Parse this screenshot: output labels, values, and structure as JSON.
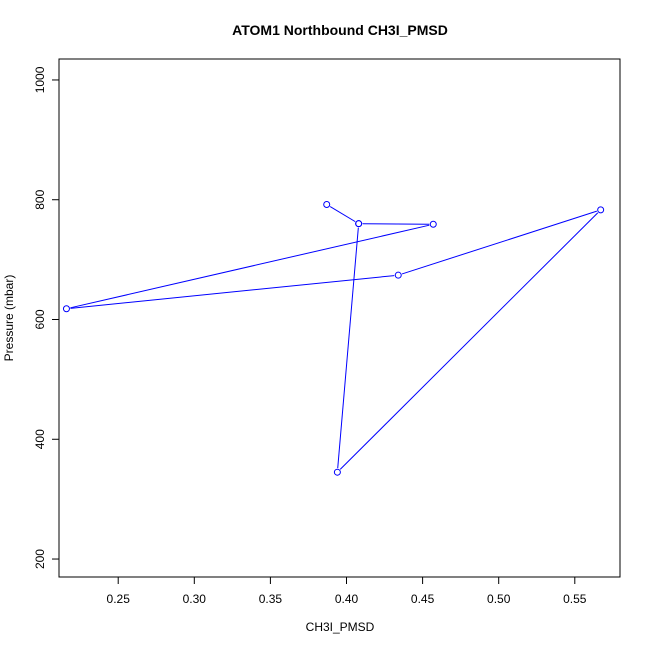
{
  "chart_data": {
    "type": "line",
    "title": "ATOM1 Northbound CH3I_PMSD",
    "xlabel": "CH3I_PMSD",
    "ylabel": "Pressure (mbar)",
    "xlim": [
      0.2111,
      0.5797
    ],
    "ylim": [
      1035,
      170
    ],
    "y_reversed": true,
    "x_ticks": [
      0.25,
      0.3,
      0.35,
      0.4,
      0.45,
      0.5,
      0.55
    ],
    "x_tick_labels": [
      "0.25",
      "0.30",
      "0.35",
      "0.40",
      "0.45",
      "0.50",
      "0.55"
    ],
    "y_ticks": [
      200,
      400,
      600,
      800,
      1000
    ],
    "y_tick_labels": [
      "200",
      "400",
      "600",
      "800",
      "1000"
    ],
    "grid": false,
    "legend": "none",
    "series": [
      {
        "color": "#0000ff",
        "marker": "open-circle",
        "x": [
          0.387,
          0.408,
          0.457,
          0.216,
          0.434,
          0.567,
          0.394,
          0.408
        ],
        "y": [
          792,
          760,
          759,
          618,
          674,
          783,
          345,
          760
        ]
      }
    ]
  }
}
